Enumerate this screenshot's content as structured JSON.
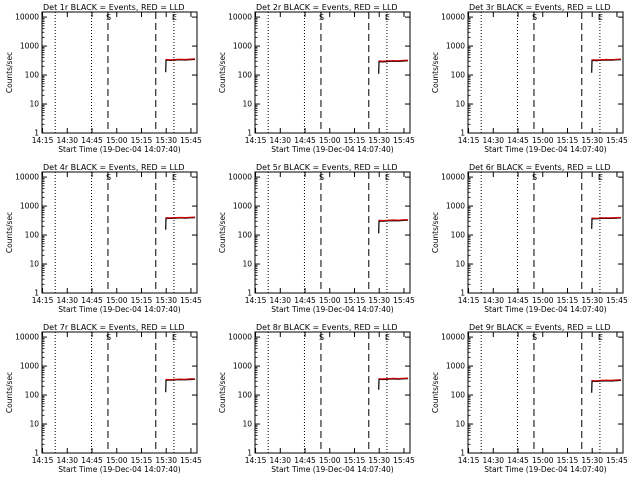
{
  "figure": {
    "xlabel": "Start Time (19-Dec-04 14:07:40)",
    "ylabel": "Counts/sec"
  },
  "chart_data": [
    {
      "type": "line",
      "title": "Det 1r BLACK = Events, RED = LLD",
      "xlabel": "Start Time (19-Dec-04 14:07:40)",
      "ylabel": "Counts/sec",
      "x_ticks": [
        "14:15",
        "14:30",
        "14:45",
        "15:00",
        "15:15",
        "15:30",
        "15:45"
      ],
      "y_ticks": [
        "1",
        "10",
        "100",
        "1000",
        "10000"
      ],
      "xlim_min": [
        7.0,
        101.0
      ],
      "ylim": [
        1,
        15000
      ],
      "y_scale": "log",
      "dotted_lines_min": [
        15.0,
        37.0,
        87.0
      ],
      "dashed_lines_min": [
        47.0,
        76.0
      ],
      "markers": [
        {
          "label": "S",
          "x_min": 47.0
        },
        {
          "label": "E",
          "x_min": 87.0
        }
      ],
      "series": [
        {
          "name": "Events",
          "color": "#000000",
          "x_min": [
            82.0,
            82.2,
            85,
            88,
            91,
            94,
            97,
            99.5
          ],
          "y": [
            130,
            330,
            320,
            330,
            335,
            330,
            340,
            345
          ]
        },
        {
          "name": "LLD",
          "color": "#cc0000",
          "x_min": [
            82.2,
            85,
            88,
            91,
            94,
            97,
            99.5
          ],
          "y": [
            345,
            335,
            345,
            350,
            345,
            355,
            360
          ]
        }
      ]
    },
    {
      "type": "line",
      "title": "Det 2r BLACK = Events, RED = LLD",
      "xlabel": "Start Time (19-Dec-04 14:07:40)",
      "ylabel": "Counts/sec",
      "x_ticks": [
        "14:15",
        "14:30",
        "14:45",
        "15:00",
        "15:15",
        "15:30",
        "15:45"
      ],
      "y_ticks": [
        "1",
        "10",
        "100",
        "1000",
        "10000"
      ],
      "xlim_min": [
        7.0,
        101.0
      ],
      "ylim": [
        1,
        15000
      ],
      "y_scale": "log",
      "dotted_lines_min": [
        15.0,
        37.0,
        87.0
      ],
      "dashed_lines_min": [
        47.0,
        76.0
      ],
      "markers": [
        {
          "label": "S",
          "x_min": 47.0
        },
        {
          "label": "E",
          "x_min": 87.0
        }
      ],
      "series": [
        {
          "name": "Events",
          "color": "#000000",
          "x_min": [
            82.0,
            82.2,
            85,
            88,
            91,
            94,
            97,
            99.5
          ],
          "y": [
            115,
            290,
            285,
            295,
            300,
            295,
            305,
            310
          ]
        },
        {
          "name": "LLD",
          "color": "#cc0000",
          "x_min": [
            82.2,
            85,
            88,
            91,
            94,
            97,
            99.5
          ],
          "y": [
            305,
            300,
            310,
            315,
            310,
            320,
            325
          ]
        }
      ]
    },
    {
      "type": "line",
      "title": "Det 3r BLACK = Events, RED = LLD",
      "xlabel": "Start Time (19-Dec-04 14:07:40)",
      "ylabel": "Counts/sec",
      "x_ticks": [
        "14:15",
        "14:30",
        "14:45",
        "15:00",
        "15:15",
        "15:30",
        "15:45"
      ],
      "y_ticks": [
        "1",
        "10",
        "100",
        "1000",
        "10000"
      ],
      "xlim_min": [
        7.0,
        101.0
      ],
      "ylim": [
        1,
        15000
      ],
      "y_scale": "log",
      "dotted_lines_min": [
        15.0,
        37.0,
        87.0
      ],
      "dashed_lines_min": [
        47.0,
        76.0
      ],
      "markers": [
        {
          "label": "S",
          "x_min": 47.0
        },
        {
          "label": "E",
          "x_min": 87.0
        }
      ],
      "series": [
        {
          "name": "Events",
          "color": "#000000",
          "x_min": [
            82.0,
            82.2,
            85,
            88,
            91,
            94,
            97,
            99.5
          ],
          "y": [
            125,
            320,
            315,
            325,
            330,
            325,
            335,
            340
          ]
        },
        {
          "name": "LLD",
          "color": "#cc0000",
          "x_min": [
            82.2,
            85,
            88,
            91,
            94,
            97,
            99.5
          ],
          "y": [
            335,
            330,
            340,
            345,
            340,
            350,
            355
          ]
        }
      ]
    },
    {
      "type": "line",
      "title": "Det 4r BLACK = Events, RED = LLD",
      "xlabel": "Start Time (19-Dec-04 14:07:40)",
      "ylabel": "Counts/sec",
      "x_ticks": [
        "14:15",
        "14:30",
        "14:45",
        "15:00",
        "15:15",
        "15:30",
        "15:45"
      ],
      "y_ticks": [
        "1",
        "10",
        "100",
        "1000",
        "10000"
      ],
      "xlim_min": [
        7.0,
        101.0
      ],
      "ylim": [
        1,
        15000
      ],
      "y_scale": "log",
      "dotted_lines_min": [
        15.0,
        37.0,
        87.0
      ],
      "dashed_lines_min": [
        47.0,
        76.0
      ],
      "markers": [
        {
          "label": "S",
          "x_min": 47.0
        },
        {
          "label": "E",
          "x_min": 87.0
        }
      ],
      "series": [
        {
          "name": "Events",
          "color": "#000000",
          "x_min": [
            82.0,
            82.2,
            85,
            88,
            91,
            94,
            97,
            99.5
          ],
          "y": [
            160,
            380,
            375,
            385,
            390,
            385,
            395,
            400
          ]
        },
        {
          "name": "LLD",
          "color": "#cc0000",
          "x_min": [
            82.2,
            85,
            88,
            91,
            94,
            97,
            99.5
          ],
          "y": [
            395,
            390,
            400,
            405,
            400,
            410,
            415
          ]
        }
      ]
    },
    {
      "type": "line",
      "title": "Det 5r BLACK = Events, RED = LLD",
      "xlabel": "Start Time (19-Dec-04 14:07:40)",
      "ylabel": "Counts/sec",
      "x_ticks": [
        "14:15",
        "14:30",
        "14:45",
        "15:00",
        "15:15",
        "15:30",
        "15:45"
      ],
      "y_ticks": [
        "1",
        "10",
        "100",
        "1000",
        "10000"
      ],
      "xlim_min": [
        7.0,
        101.0
      ],
      "ylim": [
        1,
        15000
      ],
      "y_scale": "log",
      "dotted_lines_min": [
        15.0,
        37.0,
        87.0
      ],
      "dashed_lines_min": [
        47.0,
        76.0
      ],
      "markers": [
        {
          "label": "S",
          "x_min": 47.0
        },
        {
          "label": "E",
          "x_min": 87.0
        }
      ],
      "series": [
        {
          "name": "Events",
          "color": "#000000",
          "x_min": [
            82.0,
            82.2,
            85,
            88,
            91,
            94,
            97,
            99.5
          ],
          "y": [
            120,
            305,
            300,
            310,
            315,
            310,
            320,
            325
          ]
        },
        {
          "name": "LLD",
          "color": "#cc0000",
          "x_min": [
            82.2,
            85,
            88,
            91,
            94,
            97,
            99.5
          ],
          "y": [
            320,
            315,
            325,
            330,
            325,
            335,
            340
          ]
        }
      ]
    },
    {
      "type": "line",
      "title": "Det 6r BLACK = Events, RED = LLD",
      "xlabel": "Start Time (19-Dec-04 14:07:40)",
      "ylabel": "Counts/sec",
      "x_ticks": [
        "14:15",
        "14:30",
        "14:45",
        "15:00",
        "15:15",
        "15:30",
        "15:45"
      ],
      "y_ticks": [
        "1",
        "10",
        "100",
        "1000",
        "10000"
      ],
      "xlim_min": [
        7.0,
        101.0
      ],
      "ylim": [
        1,
        15000
      ],
      "y_scale": "log",
      "dotted_lines_min": [
        15.0,
        37.0,
        87.0
      ],
      "dashed_lines_min": [
        47.0,
        76.0
      ],
      "markers": [
        {
          "label": "S",
          "x_min": 47.0
        },
        {
          "label": "E",
          "x_min": 87.0
        }
      ],
      "series": [
        {
          "name": "Events",
          "color": "#000000",
          "x_min": [
            82.0,
            82.2,
            85,
            88,
            91,
            94,
            97,
            99.5
          ],
          "y": [
            170,
            370,
            365,
            375,
            380,
            375,
            385,
            390
          ]
        },
        {
          "name": "LLD",
          "color": "#cc0000",
          "x_min": [
            82.2,
            85,
            88,
            91,
            94,
            97,
            99.5
          ],
          "y": [
            385,
            380,
            390,
            395,
            390,
            400,
            405
          ]
        }
      ]
    },
    {
      "type": "line",
      "title": "Det 7r BLACK = Events, RED = LLD",
      "xlabel": "Start Time (19-Dec-04 14:07:40)",
      "ylabel": "Counts/sec",
      "x_ticks": [
        "14:15",
        "14:30",
        "14:45",
        "15:00",
        "15:15",
        "15:30",
        "15:45"
      ],
      "y_ticks": [
        "1",
        "10",
        "100",
        "1000",
        "10000"
      ],
      "xlim_min": [
        7.0,
        101.0
      ],
      "ylim": [
        1,
        15000
      ],
      "y_scale": "log",
      "dotted_lines_min": [
        15.0,
        37.0,
        87.0
      ],
      "dashed_lines_min": [
        47.0,
        76.0
      ],
      "markers": [
        {
          "label": "S",
          "x_min": 47.0
        },
        {
          "label": "E",
          "x_min": 87.0
        }
      ],
      "series": [
        {
          "name": "Events",
          "color": "#000000",
          "x_min": [
            82.0,
            82.2,
            85,
            88,
            91,
            94,
            97,
            99.5
          ],
          "y": [
            130,
            330,
            325,
            335,
            340,
            335,
            345,
            350
          ]
        },
        {
          "name": "LLD",
          "color": "#cc0000",
          "x_min": [
            82.2,
            85,
            88,
            91,
            94,
            97,
            99.5
          ],
          "y": [
            345,
            340,
            350,
            355,
            350,
            360,
            365
          ]
        }
      ]
    },
    {
      "type": "line",
      "title": "Det 8r BLACK = Events, RED = LLD",
      "xlabel": "Start Time (19-Dec-04 14:07:40)",
      "ylabel": "Counts/sec",
      "x_ticks": [
        "14:15",
        "14:30",
        "14:45",
        "15:00",
        "15:15",
        "15:30",
        "15:45"
      ],
      "y_ticks": [
        "1",
        "10",
        "100",
        "1000",
        "10000"
      ],
      "xlim_min": [
        7.0,
        101.0
      ],
      "ylim": [
        1,
        15000
      ],
      "y_scale": "log",
      "dotted_lines_min": [
        15.0,
        37.0,
        87.0
      ],
      "dashed_lines_min": [
        47.0,
        76.0
      ],
      "markers": [
        {
          "label": "S",
          "x_min": 47.0
        },
        {
          "label": "E",
          "x_min": 87.0
        }
      ],
      "series": [
        {
          "name": "Events",
          "color": "#000000",
          "x_min": [
            82.0,
            82.2,
            85,
            88,
            91,
            94,
            97,
            99.5
          ],
          "y": [
            160,
            350,
            345,
            355,
            360,
            355,
            365,
            370
          ]
        },
        {
          "name": "LLD",
          "color": "#cc0000",
          "x_min": [
            82.2,
            85,
            88,
            91,
            94,
            97,
            99.5
          ],
          "y": [
            365,
            360,
            370,
            375,
            370,
            380,
            385
          ]
        }
      ]
    },
    {
      "type": "line",
      "title": "Det 9r BLACK = Events, RED = LLD",
      "xlabel": "Start Time (19-Dec-04 14:07:40)",
      "ylabel": "Counts/sec",
      "x_ticks": [
        "14:15",
        "14:30",
        "14:45",
        "15:00",
        "15:15",
        "15:30",
        "15:45"
      ],
      "y_ticks": [
        "1",
        "10",
        "100",
        "1000",
        "10000"
      ],
      "xlim_min": [
        7.0,
        101.0
      ],
      "ylim": [
        1,
        15000
      ],
      "y_scale": "log",
      "dotted_lines_min": [
        15.0,
        37.0,
        87.0
      ],
      "dashed_lines_min": [
        47.0,
        76.0
      ],
      "markers": [
        {
          "label": "S",
          "x_min": 47.0
        },
        {
          "label": "E",
          "x_min": 87.0
        }
      ],
      "series": [
        {
          "name": "Events",
          "color": "#000000",
          "x_min": [
            82.0,
            82.2,
            85,
            88,
            91,
            94,
            97,
            99.5
          ],
          "y": [
            125,
            300,
            295,
            305,
            310,
            305,
            315,
            320
          ]
        },
        {
          "name": "LLD",
          "color": "#cc0000",
          "x_min": [
            82.2,
            85,
            88,
            91,
            94,
            97,
            99.5
          ],
          "y": [
            315,
            310,
            320,
            325,
            320,
            330,
            335
          ]
        }
      ]
    }
  ]
}
